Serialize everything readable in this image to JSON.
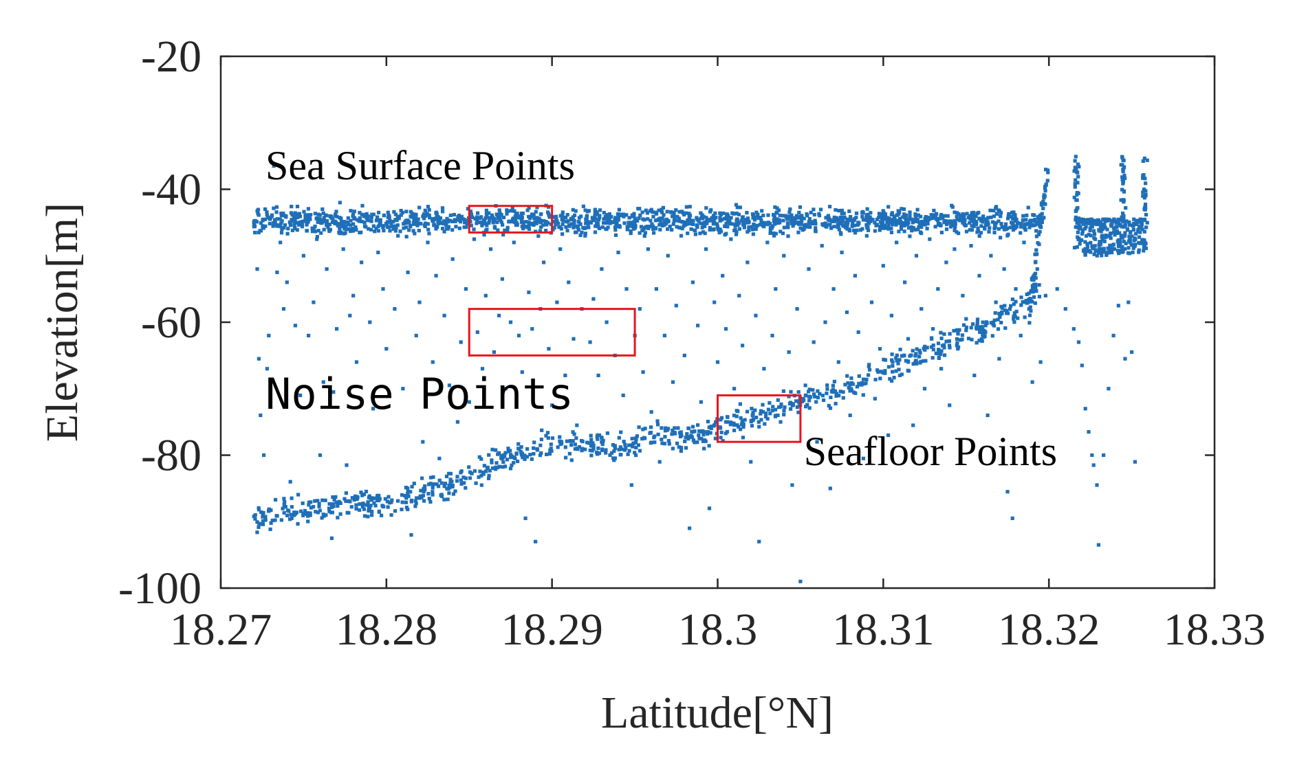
{
  "chart_data": {
    "type": "scatter",
    "xlabel": "Latitude[°N]",
    "ylabel": "Elevation[m]",
    "xlim": [
      18.27,
      18.33
    ],
    "ylim": [
      -100,
      -20
    ],
    "x_ticks": [
      "18.27",
      "18.28",
      "18.29",
      "18.3",
      "18.31",
      "18.32",
      "18.33"
    ],
    "y_ticks": [
      "-20",
      "-40",
      "-60",
      "-80",
      "-100"
    ],
    "grid": false,
    "marker_color": "#1f6fb8",
    "box_color": "#e8141c",
    "annotations": [
      {
        "label": "Sea Surface Points",
        "x": 18.2727,
        "y": -38.5
      },
      {
        "label": "Noise Points",
        "x": 18.2727,
        "y": -73.0
      },
      {
        "label": "Seafloor Points",
        "x": 18.3052,
        "y": -81.5
      }
    ],
    "boxes": [
      {
        "name": "sea-surface-box",
        "x": [
          18.285,
          18.29
        ],
        "y": [
          -46.5,
          -42.5
        ]
      },
      {
        "name": "noise-box",
        "x": [
          18.285,
          18.295
        ],
        "y": [
          -65,
          -58
        ]
      },
      {
        "name": "seafloor-box",
        "x": [
          18.3,
          18.305
        ],
        "y": [
          -78,
          -71
        ]
      }
    ],
    "series": [
      {
        "sea_surface_band": {
          "x": [
            18.272,
            18.3197
          ],
          "y_center": -44.8,
          "y_spread": 0.9
        },
        "seafloor_profile": {
          "x": [
            18.272,
            18.274,
            18.276,
            18.278,
            18.28,
            18.282,
            18.284,
            18.286,
            18.288,
            18.29,
            18.292,
            18.294,
            18.296,
            18.298,
            18.3,
            18.302,
            18.304,
            18.306,
            18.308,
            18.31,
            18.312,
            18.314,
            18.316,
            18.318,
            18.3195
          ],
          "y": [
            -89.5,
            -88.5,
            -88,
            -87.5,
            -87,
            -86,
            -84.5,
            -82,
            -80,
            -78,
            -78.5,
            -79,
            -77,
            -77.5,
            -76,
            -74.5,
            -72.5,
            -71,
            -70,
            -67.5,
            -65,
            -63,
            -61,
            -58,
            -54
          ]
        },
        "right_cluster": {
          "x": [
            18.3217,
            18.3258
          ],
          "y_floor": -49,
          "y_top": -35,
          "spikes_x": [
            18.3217,
            18.3245,
            18.3258
          ]
        },
        "noise_points": [
          [
            18.2722,
            -52
          ],
          [
            18.2723,
            -65.5
          ],
          [
            18.2724,
            -74
          ],
          [
            18.2726,
            -80
          ],
          [
            18.2728,
            -67
          ],
          [
            18.2729,
            -62
          ],
          [
            18.273,
            -69.5
          ],
          [
            18.2732,
            -36.5
          ],
          [
            18.2734,
            -52.5
          ],
          [
            18.2736,
            -48
          ],
          [
            18.2738,
            -58
          ],
          [
            18.274,
            -54
          ],
          [
            18.2742,
            -84
          ],
          [
            18.2745,
            -60.5
          ],
          [
            18.2748,
            -71
          ],
          [
            18.275,
            -50
          ],
          [
            18.2753,
            -62
          ],
          [
            18.2756,
            -57
          ],
          [
            18.2758,
            -47.5
          ],
          [
            18.276,
            -80
          ],
          [
            18.2762,
            -69
          ],
          [
            18.2764,
            -52
          ],
          [
            18.2767,
            -92.5
          ],
          [
            18.2768,
            -70.5
          ],
          [
            18.277,
            -61
          ],
          [
            18.2772,
            -42
          ],
          [
            18.2774,
            -49
          ],
          [
            18.2776,
            -81.5
          ],
          [
            18.2778,
            -59
          ],
          [
            18.278,
            -56
          ],
          [
            18.2782,
            -66
          ],
          [
            18.2785,
            -51
          ],
          [
            18.2788,
            -87.5
          ],
          [
            18.279,
            -60
          ],
          [
            18.2792,
            -73
          ],
          [
            18.2795,
            -49.5
          ],
          [
            18.2798,
            -55
          ],
          [
            18.28,
            -64
          ],
          [
            18.2803,
            -89
          ],
          [
            18.2805,
            -58
          ],
          [
            18.2807,
            -47
          ],
          [
            18.281,
            -70
          ],
          [
            18.2813,
            -52.5
          ],
          [
            18.2815,
            -92
          ],
          [
            18.2818,
            -62
          ],
          [
            18.282,
            -57
          ],
          [
            18.2822,
            -78
          ],
          [
            18.2825,
            -48
          ],
          [
            18.2828,
            -66
          ],
          [
            18.283,
            -53
          ],
          [
            18.2832,
            -80.5
          ],
          [
            18.2835,
            -59
          ],
          [
            18.2838,
            -69.5
          ],
          [
            18.284,
            -50.5
          ],
          [
            18.2843,
            -75
          ],
          [
            18.2845,
            -63
          ],
          [
            18.2848,
            -55
          ],
          [
            18.285,
            -72
          ],
          [
            18.2853,
            -47.5
          ],
          [
            18.2855,
            -61.5
          ],
          [
            18.2858,
            -67
          ],
          [
            18.286,
            -56
          ],
          [
            18.2863,
            -49
          ],
          [
            18.2865,
            -64.5
          ],
          [
            18.2868,
            -59
          ],
          [
            18.287,
            -53.5
          ],
          [
            18.2872,
            -70
          ],
          [
            18.2875,
            -60
          ],
          [
            18.2877,
            -48
          ],
          [
            18.288,
            -62
          ],
          [
            18.2882,
            -67.5
          ],
          [
            18.2884,
            -89.5
          ],
          [
            18.2886,
            -55.5
          ],
          [
            18.2888,
            -61
          ],
          [
            18.289,
            -93
          ],
          [
            18.2893,
            -58
          ],
          [
            18.2895,
            -51
          ],
          [
            18.2898,
            -64
          ],
          [
            18.29,
            -72.5
          ],
          [
            18.2903,
            -57
          ],
          [
            18.2905,
            -49
          ],
          [
            18.2908,
            -68
          ],
          [
            18.291,
            -54
          ],
          [
            18.2913,
            -62.5
          ],
          [
            18.2915,
            -75.5
          ],
          [
            18.2918,
            -58
          ],
          [
            18.292,
            -47
          ],
          [
            18.2923,
            -63
          ],
          [
            18.2925,
            -56.5
          ],
          [
            18.2928,
            -68
          ],
          [
            18.293,
            -52
          ],
          [
            18.2933,
            -60
          ],
          [
            18.2935,
            -80
          ],
          [
            18.2938,
            -65
          ],
          [
            18.294,
            -49.5
          ],
          [
            18.2943,
            -71
          ],
          [
            18.2945,
            -55
          ],
          [
            18.2948,
            -84.5
          ],
          [
            18.295,
            -62
          ],
          [
            18.2953,
            -58
          ],
          [
            18.2955,
            -67.5
          ],
          [
            18.2958,
            -49
          ],
          [
            18.296,
            -73.5
          ],
          [
            18.2963,
            -55
          ],
          [
            18.2965,
            -81
          ],
          [
            18.2968,
            -62
          ],
          [
            18.297,
            -50
          ],
          [
            18.2973,
            -69
          ],
          [
            18.2975,
            -57.5
          ],
          [
            18.2978,
            -47
          ],
          [
            18.298,
            -65
          ],
          [
            18.2983,
            -91
          ],
          [
            18.2985,
            -54
          ],
          [
            18.2988,
            -60.5
          ],
          [
            18.299,
            -72
          ],
          [
            18.2993,
            -49
          ],
          [
            18.2995,
            -88
          ],
          [
            18.2998,
            -57
          ],
          [
            18.3,
            -66
          ],
          [
            18.3003,
            -53
          ],
          [
            18.3005,
            -61
          ],
          [
            18.3008,
            -47.5
          ],
          [
            18.301,
            -70
          ],
          [
            18.3013,
            -56
          ],
          [
            18.3015,
            -63.5
          ],
          [
            18.3018,
            -51
          ],
          [
            18.302,
            -81
          ],
          [
            18.3023,
            -59
          ],
          [
            18.3025,
            -93
          ],
          [
            18.3028,
            -67
          ],
          [
            18.303,
            -48
          ],
          [
            18.3033,
            -62
          ],
          [
            18.3035,
            -55
          ],
          [
            18.3038,
            -75
          ],
          [
            18.304,
            -50
          ],
          [
            18.3043,
            -64.5
          ],
          [
            18.3045,
            -84.5
          ],
          [
            18.3048,
            -58
          ],
          [
            18.305,
            -99
          ],
          [
            18.3053,
            -69.5
          ],
          [
            18.3055,
            -52
          ],
          [
            18.3058,
            -63
          ],
          [
            18.306,
            -78
          ],
          [
            18.3063,
            -48.5
          ],
          [
            18.3065,
            -60
          ],
          [
            18.3068,
            -85
          ],
          [
            18.307,
            -55
          ],
          [
            18.3073,
            -66
          ],
          [
            18.3075,
            -49.5
          ],
          [
            18.3078,
            -58.5
          ],
          [
            18.308,
            -74
          ],
          [
            18.3083,
            -53
          ],
          [
            18.3085,
            -61.5
          ],
          [
            18.3088,
            -80.5
          ],
          [
            18.309,
            -47
          ],
          [
            18.3093,
            -57
          ],
          [
            18.3095,
            -71.5
          ],
          [
            18.3098,
            -64
          ],
          [
            18.31,
            -51.5
          ],
          [
            18.3103,
            -77
          ],
          [
            18.3105,
            -59
          ],
          [
            18.3108,
            -48
          ],
          [
            18.311,
            -68
          ],
          [
            18.3113,
            -54
          ],
          [
            18.3115,
            -62.5
          ],
          [
            18.3118,
            -75.5
          ],
          [
            18.312,
            -50
          ],
          [
            18.3123,
            -58
          ],
          [
            18.3125,
            -70
          ],
          [
            18.3128,
            -47.5
          ],
          [
            18.313,
            -61
          ],
          [
            18.3133,
            -55
          ],
          [
            18.3135,
            -67
          ],
          [
            18.3138,
            -51
          ],
          [
            18.314,
            -72.5
          ],
          [
            18.3143,
            -49
          ],
          [
            18.3145,
            -64
          ],
          [
            18.3148,
            -56
          ],
          [
            18.315,
            -59.5
          ],
          [
            18.3153,
            -48.5
          ],
          [
            18.3155,
            -68
          ],
          [
            18.3158,
            -53
          ],
          [
            18.316,
            -61
          ],
          [
            18.3163,
            -74
          ],
          [
            18.3165,
            -50
          ],
          [
            18.3168,
            -57
          ],
          [
            18.317,
            -65.5
          ],
          [
            18.3173,
            -52
          ],
          [
            18.3175,
            -85.5
          ],
          [
            18.3178,
            -89.5
          ],
          [
            18.318,
            -55
          ],
          [
            18.3183,
            -62
          ],
          [
            18.3185,
            -48
          ],
          [
            18.3188,
            -58
          ],
          [
            18.319,
            -69
          ],
          [
            18.3193,
            -52
          ],
          [
            18.3195,
            -66
          ],
          [
            18.3198,
            -56
          ],
          [
            18.3205,
            -55
          ],
          [
            18.321,
            -58
          ],
          [
            18.3215,
            -61
          ],
          [
            18.3218,
            -63
          ],
          [
            18.322,
            -66.5
          ],
          [
            18.3222,
            -73
          ],
          [
            18.3224,
            -76.5
          ],
          [
            18.3226,
            -80
          ],
          [
            18.3227,
            -81.5
          ],
          [
            18.3229,
            -84.5
          ],
          [
            18.323,
            -93.5
          ],
          [
            18.3233,
            -80
          ],
          [
            18.3236,
            -70
          ],
          [
            18.3239,
            -62
          ],
          [
            18.3242,
            -57.5
          ],
          [
            18.3246,
            -65.5
          ],
          [
            18.3248,
            -57
          ],
          [
            18.325,
            -64.5
          ],
          [
            18.3252,
            -81
          ]
        ]
      }
    ]
  }
}
